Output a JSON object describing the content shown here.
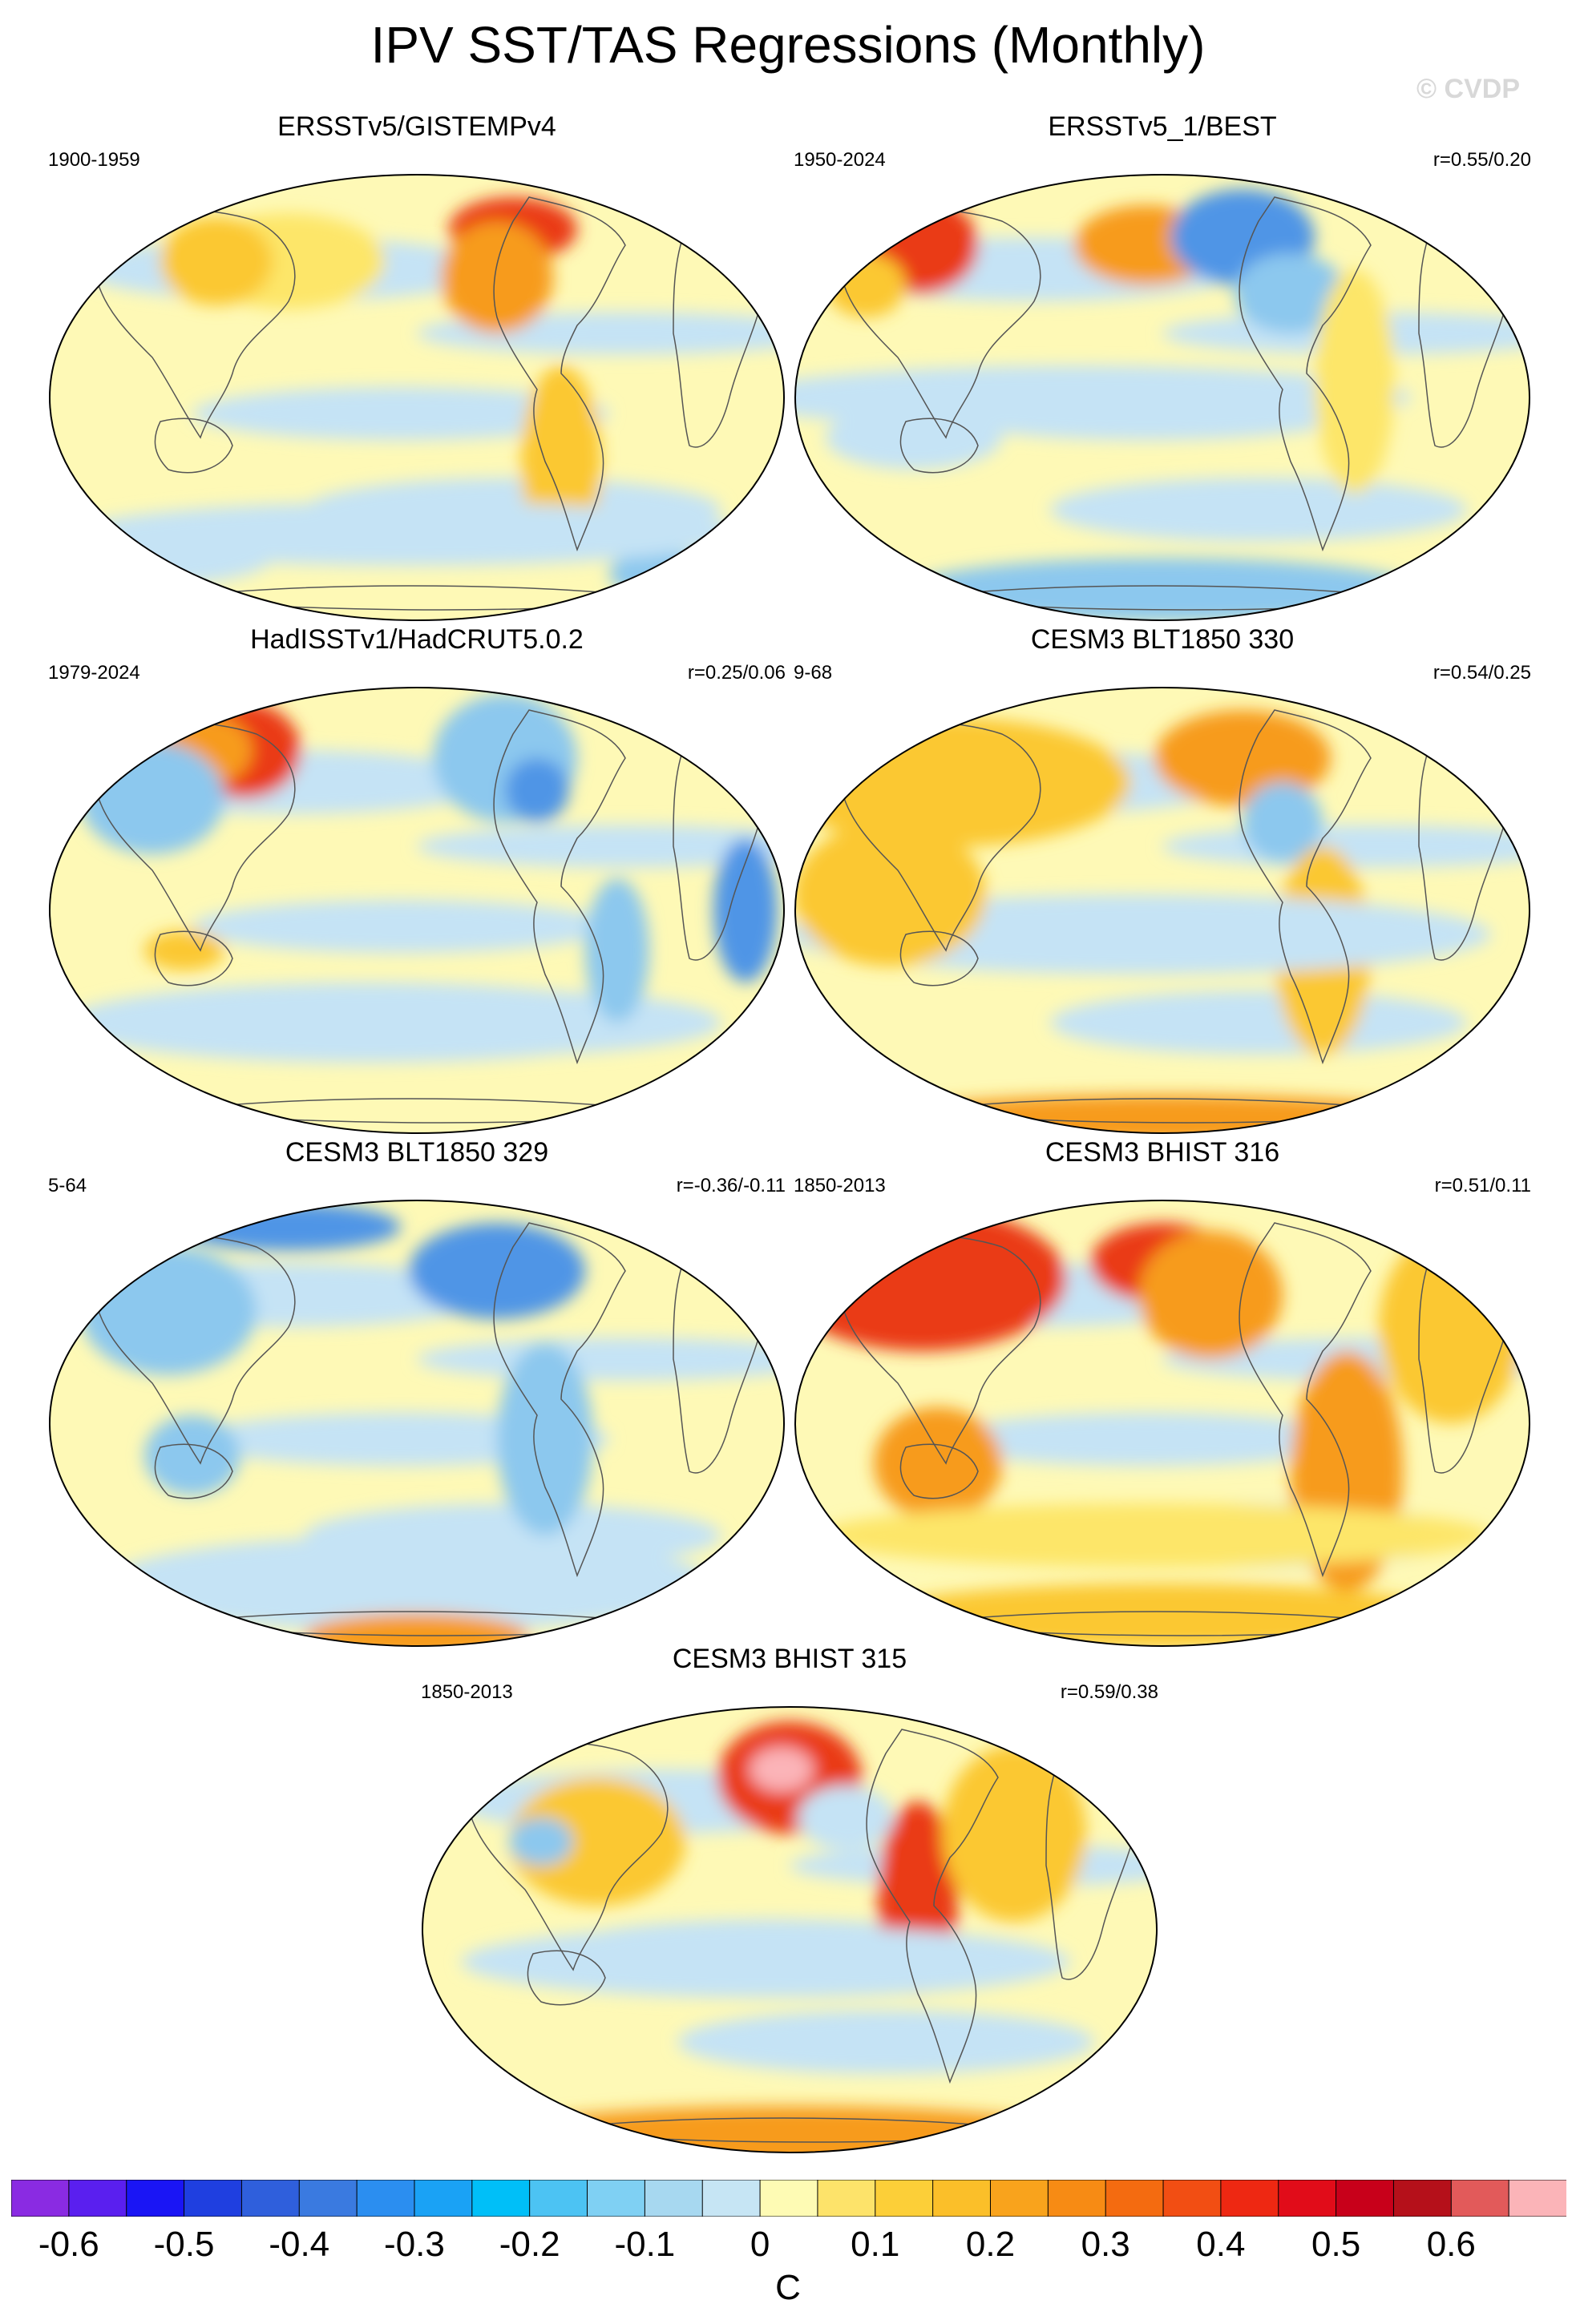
{
  "title": "IPV SST/TAS Regressions (Monthly)",
  "watermark": "© CVDP",
  "colors": {
    "neutral": "#fef9b6",
    "ocean_light_blue": "#c5e3f5",
    "blue_mid": "#8cc8ee",
    "blue_strong": "#4f95e6",
    "yellow": "#fde669",
    "orange_light": "#fbc830",
    "orange": "#f79b1c",
    "red": "#ea3a17",
    "coastline": "#555555"
  },
  "panels": [
    {
      "title": "ERSSTv5/GISTEMPv4",
      "period": "1900-1959",
      "corr": ""
    },
    {
      "title": "ERSSTv5_1/BEST",
      "period": "1950-2024",
      "corr": "r=0.55/0.20"
    },
    {
      "title": "HadISSTv1/HadCRUT5.0.2",
      "period": "1979-2024",
      "corr": "r=0.25/0.06"
    },
    {
      "title": "CESM3 BLT1850 330",
      "period": "9-68",
      "corr": "r=0.54/0.25"
    },
    {
      "title": "CESM3 BLT1850 329",
      "period": "5-64",
      "corr": "r=-0.36/-0.11"
    },
    {
      "title": "CESM3 BHIST 316",
      "period": "1850-2013",
      "corr": "r=0.51/0.11"
    },
    {
      "title": "CESM3 BHIST 315",
      "period": "1850-2013",
      "corr": "r=0.59/0.38"
    }
  ],
  "colorbar": {
    "units": "C",
    "labels": [
      "-0.6",
      "-0.5",
      "-0.4",
      "-0.3",
      "-0.2",
      "-0.1",
      "0",
      "0.1",
      "0.2",
      "0.3",
      "0.4",
      "0.5",
      "0.6"
    ],
    "colors": [
      "#8a2be2",
      "#5a1fef",
      "#1a15f5",
      "#1f3fe0",
      "#2f5fdc",
      "#3a7ae0",
      "#2b8ef0",
      "#1aa2f5",
      "#00bff8",
      "#4cc3f3",
      "#7fd0f3",
      "#a7d8f0",
      "#c6e5f4",
      "#fefbb4",
      "#fde36a",
      "#fccf38",
      "#fbbf29",
      "#f9a31c",
      "#f78b14",
      "#f46b10",
      "#f24e13",
      "#ee2812",
      "#e10c19",
      "#c8001a",
      "#b5101a",
      "#e25a5a",
      "#fbb4b8"
    ],
    "label_start_boundary": 1,
    "label_step": 2
  }
}
